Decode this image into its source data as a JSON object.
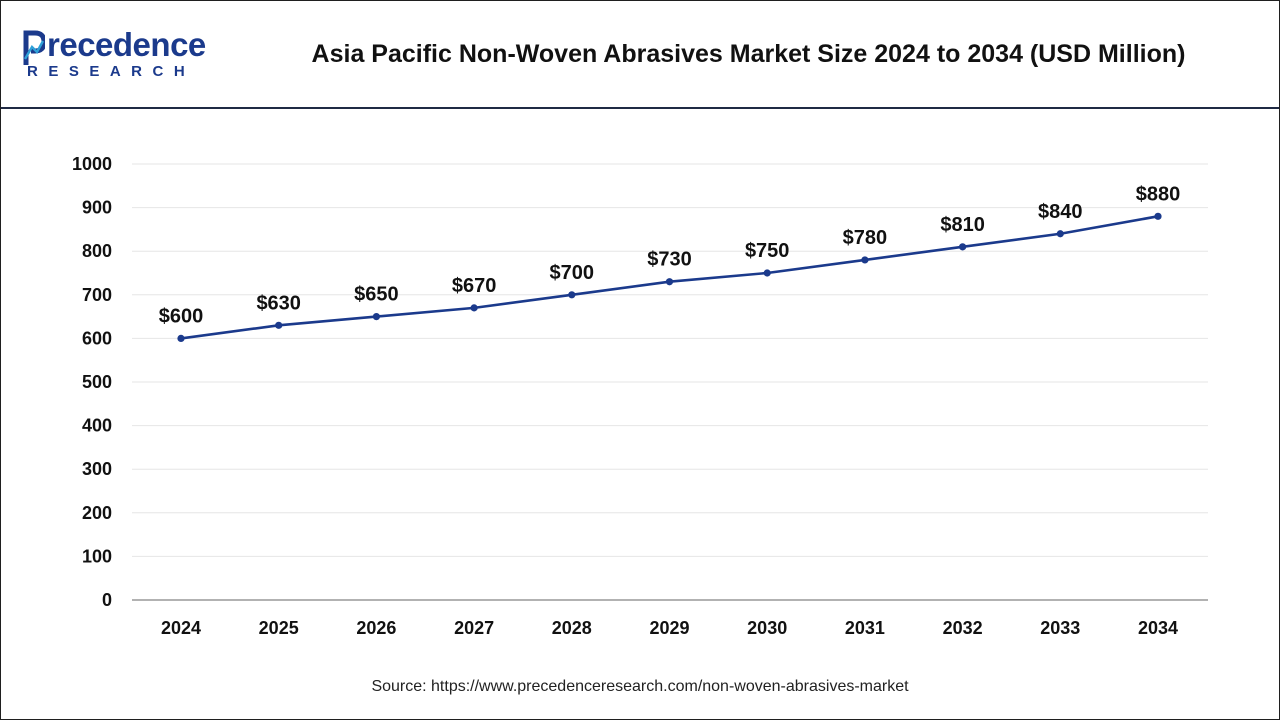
{
  "brand": {
    "logo_word": "recedence",
    "logo_sub": "RESEARCH"
  },
  "chart_title": "Asia Pacific Non-Woven Abrasives Market Size 2024 to 2034 (USD Million)",
  "source_text": "Source: https://www.precedenceresearch.com/non-woven-abrasives-market",
  "colors": {
    "line": "#1b3a8c",
    "brand": "#1b3a8c",
    "grid": "#e6e6e6",
    "axis": "#999999",
    "text": "#111111"
  },
  "chart_data": {
    "type": "line",
    "title": "Asia Pacific Non-Woven Abrasives Market Size 2024 to 2034 (USD Million)",
    "categories": [
      "2024",
      "2025",
      "2026",
      "2027",
      "2028",
      "2029",
      "2030",
      "2031",
      "2032",
      "2033",
      "2034"
    ],
    "series": [
      {
        "values": [
          600,
          630,
          650,
          670,
          700,
          730,
          750,
          780,
          810,
          840,
          880
        ],
        "data_labels": [
          "$600",
          "$630",
          "$650",
          "$670",
          "$700",
          "$730",
          "$750",
          "$780",
          "$810",
          "$840",
          "$880"
        ]
      }
    ],
    "ylim": [
      0,
      1000
    ],
    "yticks": [
      0,
      100,
      200,
      300,
      400,
      500,
      600,
      700,
      800,
      900,
      1000
    ],
    "grid": true,
    "legend": "none"
  }
}
